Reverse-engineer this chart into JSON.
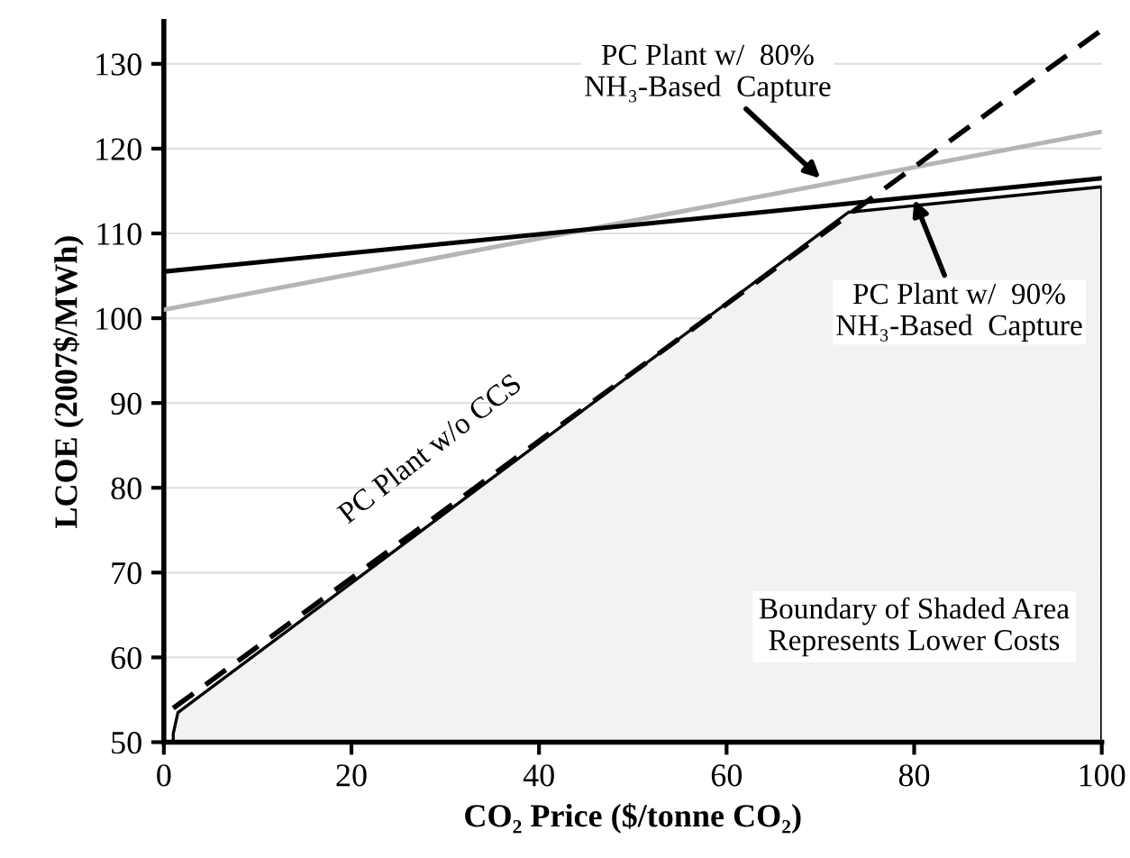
{
  "chart_data": {
    "type": "line",
    "xlabel": "CO₂ Price ($/tonne CO₂)",
    "ylabel": "LCOE (2007$/MWh)",
    "xlim": [
      0,
      100
    ],
    "xticks": [
      0,
      20,
      40,
      60,
      80,
      100
    ],
    "ylim": [
      50,
      135
    ],
    "yticks": [
      50,
      60,
      70,
      80,
      90,
      100,
      110,
      120,
      130
    ],
    "grid": "y",
    "legend": false,
    "series": [
      {
        "type": "area",
        "color": "#f2f2f2",
        "x": [
          1,
          1.5,
          73,
          100
        ],
        "values": [
          51,
          53.5,
          112.5,
          115.5
        ]
      },
      {
        "color": "#b5b5b5",
        "x": [
          0,
          100
        ],
        "values": [
          101,
          122
        ],
        "line_style": "solid"
      },
      {
        "color": "#000000",
        "x": [
          0,
          100
        ],
        "values": [
          105.5,
          116.5
        ],
        "line_style": "solid"
      },
      {
        "color": "#000000",
        "x": [
          1,
          100
        ],
        "values": [
          54,
          134
        ],
        "line_style": "dashed"
      }
    ],
    "annotations": [
      {
        "text": "PC Plant w/  80%\nNH₃-Based  Capture",
        "x": 70,
        "y": 116.5
      },
      {
        "text": "PC Plant w/  90%\nNH₃-Based  Capture",
        "x": 80,
        "y": 114
      },
      "PC Plant w/o CCS",
      "Boundary of Shaded Area\nRepresents Lower Costs"
    ]
  }
}
